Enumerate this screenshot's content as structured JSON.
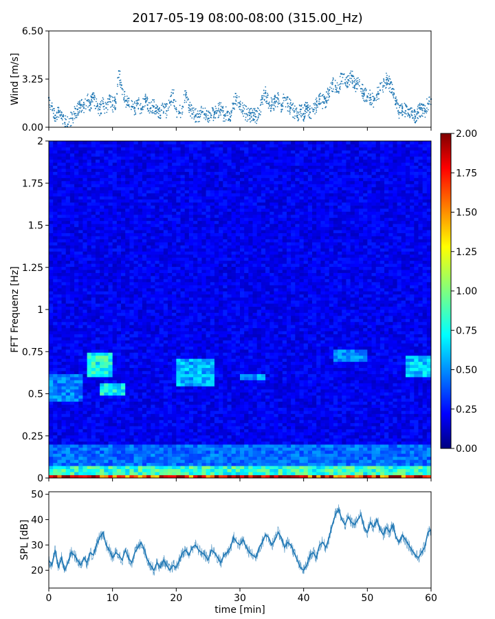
{
  "title": "2017-05-19 08:00-08:00 (315.00_Hz)",
  "chart_data": [
    {
      "panel": "wind",
      "type": "scatter",
      "ylabel": "Wind [m/s]",
      "xlim": [
        0,
        60
      ],
      "ylim": [
        0,
        6.5
      ],
      "yticks": [
        0.0,
        3.25,
        6.5
      ],
      "ytick_labels": [
        "0.00",
        "3.25",
        "6.50"
      ],
      "color": "#1f77b4",
      "series": [
        {
          "x": [
            0,
            0.5,
            1,
            1.5,
            2,
            2.5,
            3,
            3.5,
            4,
            4.5,
            5,
            5.5,
            6,
            6.5,
            7,
            7.5,
            8,
            8.5,
            9,
            9.5,
            10,
            10.5,
            11,
            11.5,
            12,
            12.5,
            13,
            13.5,
            14,
            14.5,
            15,
            15.5,
            16,
            16.5,
            17,
            17.5,
            18,
            18.5,
            19,
            19.5,
            20,
            20.5,
            21,
            21.5,
            22,
            22.5,
            23,
            23.5,
            24,
            24.5,
            25,
            25.5,
            26,
            26.5,
            27,
            27.5,
            28,
            28.5,
            29,
            29.5,
            30,
            30.5,
            31,
            31.5,
            32,
            32.5,
            33,
            33.5,
            34,
            34.5,
            35,
            35.5,
            36,
            36.5,
            37,
            37.5,
            38,
            38.5,
            39,
            39.5,
            40,
            40.5,
            41,
            41.5,
            42,
            42.5,
            43,
            43.5,
            44,
            44.5,
            45,
            45.5,
            46,
            46.5,
            47,
            47.5,
            48,
            48.5,
            49,
            49.5,
            50,
            50.5,
            51,
            51.5,
            52,
            52.5,
            53,
            53.5,
            54,
            54.5,
            55,
            55.5,
            56,
            56.5,
            57,
            57.5,
            58,
            58.5,
            59,
            59.5,
            60
          ],
          "y": [
            2.0,
            1.4,
            0.8,
            1.0,
            0.6,
            0.3,
            0.2,
            0.6,
            0.9,
            1.2,
            1.5,
            1.3,
            1.8,
            1.6,
            2.0,
            1.4,
            1.2,
            1.6,
            1.3,
            1.9,
            1.5,
            1.7,
            3.8,
            2.6,
            1.8,
            1.5,
            1.4,
            1.3,
            1.6,
            1.2,
            1.9,
            1.5,
            1.3,
            1.4,
            1.0,
            0.8,
            1.4,
            1.1,
            1.7,
            2.3,
            1.2,
            1.0,
            1.4,
            2.2,
            1.5,
            0.9,
            0.8,
            0.7,
            1.0,
            0.9,
            0.6,
            0.8,
            1.0,
            1.1,
            1.2,
            0.8,
            1.0,
            0.7,
            1.6,
            2.0,
            1.4,
            1.1,
            0.9,
            0.8,
            1.0,
            0.7,
            0.9,
            1.9,
            2.3,
            1.6,
            1.5,
            1.7,
            1.9,
            1.5,
            2.0,
            1.6,
            1.3,
            1.1,
            0.8,
            1.2,
            0.9,
            1.4,
            1.0,
            1.2,
            1.5,
            1.9,
            1.7,
            1.8,
            2.5,
            2.9,
            2.8,
            2.4,
            3.6,
            3.0,
            3.2,
            3.5,
            2.8,
            3.0,
            2.6,
            2.2,
            2.1,
            2.0,
            1.8,
            2.2,
            2.5,
            2.8,
            3.2,
            2.9,
            2.6,
            1.6,
            1.0,
            1.3,
            1.1,
            1.2,
            0.8,
            0.7,
            1.0,
            1.3,
            1.1,
            1.6,
            1.9
          ]
        }
      ]
    },
    {
      "panel": "spectrogram",
      "type": "heatmap",
      "ylabel": "FFT Frequenz [Hz]",
      "xlim": [
        0,
        60
      ],
      "ylim": [
        0,
        2
      ],
      "yticks": [
        0,
        0.25,
        0.5,
        0.75,
        1,
        1.25,
        1.5,
        1.75,
        2
      ],
      "ytick_labels": [
        "0",
        "0.25",
        "0.5",
        "0.75",
        "1",
        "1.25",
        "1.5",
        "1.75",
        "2"
      ],
      "colormap": "jet",
      "colorbar": {
        "range": [
          0,
          2
        ],
        "ticks": [
          0.0,
          0.25,
          0.5,
          0.75,
          1.0,
          1.25,
          1.5,
          1.75,
          2.0
        ],
        "tick_labels": [
          "0.00",
          "0.25",
          "0.50",
          "0.75",
          "1.00",
          "1.25",
          "1.50",
          "1.75",
          "2.00"
        ]
      },
      "features": [
        {
          "x": [
            0,
            60
          ],
          "y": [
            0,
            0.02
          ],
          "value": 1.9
        },
        {
          "x": [
            0,
            60
          ],
          "y": [
            0.02,
            0.08
          ],
          "value": 0.9
        },
        {
          "x": [
            0,
            60
          ],
          "y": [
            0.08,
            0.2
          ],
          "value": 0.5
        },
        {
          "x": [
            6,
            10
          ],
          "y": [
            0.6,
            0.75
          ],
          "value": 0.85
        },
        {
          "x": [
            8,
            12
          ],
          "y": [
            0.5,
            0.56
          ],
          "value": 0.8
        },
        {
          "x": [
            0,
            5
          ],
          "y": [
            0.45,
            0.62
          ],
          "value": 0.55
        },
        {
          "x": [
            20,
            26
          ],
          "y": [
            0.55,
            0.7
          ],
          "value": 0.65
        },
        {
          "x": [
            30,
            34
          ],
          "y": [
            0.58,
            0.62
          ],
          "value": 0.6
        },
        {
          "x": [
            45,
            50
          ],
          "y": [
            0.7,
            0.77
          ],
          "value": 0.55
        },
        {
          "x": [
            56,
            60
          ],
          "y": [
            0.6,
            0.72
          ],
          "value": 0.7
        }
      ]
    },
    {
      "panel": "spl",
      "type": "line",
      "ylabel": "SPL [dB]",
      "xlabel": "time [min]",
      "xlim": [
        0,
        60
      ],
      "ylim": [
        13,
        51
      ],
      "yticks": [
        20,
        30,
        40,
        50
      ],
      "ytick_labels": [
        "20",
        "30",
        "40",
        "50"
      ],
      "xticks": [
        0,
        10,
        20,
        30,
        40,
        50,
        60
      ],
      "xtick_labels": [
        "0",
        "10",
        "20",
        "30",
        "40",
        "50",
        "60"
      ],
      "color": "#1f77b4",
      "series": [
        {
          "x": [
            0,
            0.5,
            1,
            1.5,
            2,
            2.5,
            3,
            3.5,
            4,
            4.5,
            5,
            5.5,
            6,
            6.5,
            7,
            7.5,
            8,
            8.5,
            9,
            9.5,
            10,
            10.5,
            11,
            11.5,
            12,
            12.5,
            13,
            13.5,
            14,
            14.5,
            15,
            15.5,
            16,
            16.5,
            17,
            17.5,
            18,
            18.5,
            19,
            19.5,
            20,
            20.5,
            21,
            21.5,
            22,
            22.5,
            23,
            23.5,
            24,
            24.5,
            25,
            25.5,
            26,
            26.5,
            27,
            27.5,
            28,
            28.5,
            29,
            29.5,
            30,
            30.5,
            31,
            31.5,
            32,
            32.5,
            33,
            33.5,
            34,
            34.5,
            35,
            35.5,
            36,
            36.5,
            37,
            37.5,
            38,
            38.5,
            39,
            39.5,
            40,
            40.5,
            41,
            41.5,
            42,
            42.5,
            43,
            43.5,
            44,
            44.5,
            45,
            45.5,
            46,
            46.5,
            47,
            47.5,
            48,
            48.5,
            49,
            49.5,
            50,
            50.5,
            51,
            51.5,
            52,
            52.5,
            53,
            53.5,
            54,
            54.5,
            55,
            55.5,
            56,
            56.5,
            57,
            57.5,
            58,
            58.5,
            59,
            59.5,
            60
          ],
          "y": [
            24,
            22,
            28,
            21,
            25,
            20,
            23,
            27,
            26,
            24,
            22,
            25,
            23,
            27,
            26,
            30,
            33,
            35,
            30,
            28,
            25,
            27,
            26,
            24,
            28,
            25,
            23,
            27,
            29,
            31,
            28,
            24,
            22,
            20,
            23,
            21,
            24,
            22,
            20,
            22,
            21,
            24,
            27,
            28,
            26,
            29,
            30,
            28,
            27,
            26,
            24,
            28,
            27,
            25,
            23,
            26,
            27,
            29,
            33,
            31,
            30,
            32,
            29,
            27,
            26,
            25,
            29,
            31,
            34,
            33,
            30,
            32,
            35,
            33,
            29,
            31,
            30,
            27,
            24,
            21,
            20,
            22,
            26,
            27,
            25,
            30,
            31,
            29,
            33,
            38,
            42,
            44,
            40,
            38,
            41,
            39,
            38,
            40,
            42,
            37,
            35,
            39,
            37,
            40,
            36,
            34,
            37,
            35,
            38,
            33,
            31,
            34,
            32,
            30,
            28,
            26,
            25,
            27,
            29,
            35,
            36
          ]
        }
      ]
    }
  ]
}
